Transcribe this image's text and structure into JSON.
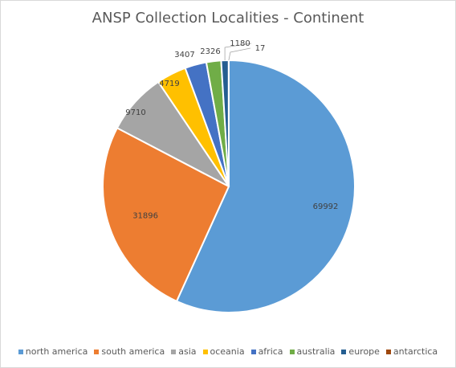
{
  "chart_data": {
    "type": "pie",
    "title": "ANSP Collection Localities - Continent",
    "categories": [
      "north america",
      "south america",
      "asia",
      "oceania",
      "africa",
      "australia",
      "europe",
      "antarctica"
    ],
    "values": [
      69992,
      31896,
      9710,
      4719,
      3407,
      2326,
      1180,
      17
    ],
    "colors": [
      "#5b9bd5",
      "#ed7d31",
      "#a5a5a5",
      "#ffc000",
      "#4472c4",
      "#70ad47",
      "#255e91",
      "#9e480e"
    ],
    "legend_position": "bottom",
    "start": "top, clockwise"
  }
}
